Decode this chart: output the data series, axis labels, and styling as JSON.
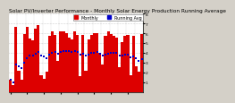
{
  "title": "Solar PV/Inverter Performance - Monthly Solar Energy Production Running Average",
  "bar_values": [
    55,
    30,
    290,
    95,
    55,
    260,
    290,
    240,
    230,
    285,
    300,
    75,
    60,
    90,
    250,
    270,
    255,
    140,
    270,
    270,
    265,
    245,
    235,
    270,
    255,
    70,
    255,
    95,
    235,
    255,
    265,
    265,
    175,
    125,
    250,
    270,
    260,
    250,
    245,
    110,
    225,
    250,
    255,
    75,
    250,
    115,
    90,
    260
  ],
  "avg_values": [
    55,
    42,
    125,
    117,
    106,
    130,
    151,
    162,
    164,
    172,
    178,
    165,
    158,
    153,
    167,
    175,
    181,
    173,
    178,
    182,
    184,
    183,
    181,
    183,
    180,
    169,
    173,
    164,
    169,
    174,
    177,
    181,
    173,
    164,
    168,
    172,
    175,
    174,
    175,
    163,
    163,
    166,
    169,
    157,
    161,
    151,
    141,
    147
  ],
  "bar_color": "#dd0000",
  "avg_color": "#0000cc",
  "bg_color": "#d4d0c8",
  "plot_bg": "#ffffff",
  "grid_color": "#aaaaaa",
  "ylim": [
    0,
    350
  ],
  "ytick_labels": [
    "1",
    "2",
    "3",
    "4",
    "5",
    "6",
    "7",
    "8"
  ],
  "ytick_vals": [
    43.75,
    87.5,
    131.25,
    175.0,
    218.75,
    262.5,
    306.25,
    350.0
  ],
  "title_fontsize": 4.2,
  "tick_fontsize": 3.2,
  "legend_fontsize": 3.5,
  "n_bars": 48
}
